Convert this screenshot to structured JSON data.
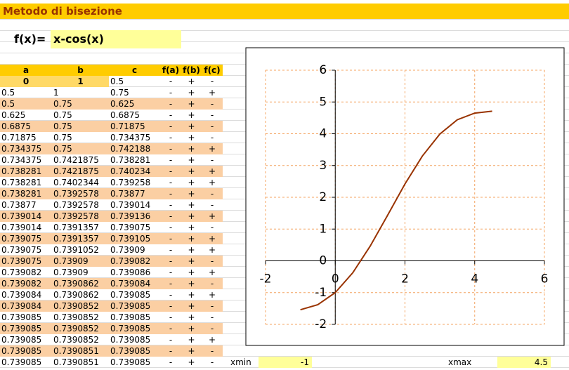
{
  "header": {
    "title": "Metodo di bisezione"
  },
  "formula": {
    "label": "f(x)=",
    "expression": "x-cos(x)"
  },
  "table": {
    "columns": [
      "a",
      "b",
      "c",
      "f(a)",
      "f(b)",
      "f(c)"
    ],
    "initial": [
      "0",
      "1",
      "0.5",
      "-",
      "+",
      "-"
    ],
    "rows": [
      [
        "0.5",
        "1",
        "0.75",
        "-",
        "+",
        "+"
      ],
      [
        "0.5",
        "0.75",
        "0.625",
        "-",
        "+",
        "-"
      ],
      [
        "0.625",
        "0.75",
        "0.6875",
        "-",
        "+",
        "-"
      ],
      [
        "0.6875",
        "0.75",
        "0.71875",
        "-",
        "+",
        "-"
      ],
      [
        "0.71875",
        "0.75",
        "0.734375",
        "-",
        "+",
        "-"
      ],
      [
        "0.734375",
        "0.75",
        "0.742188",
        "-",
        "+",
        "+"
      ],
      [
        "0.734375",
        "0.7421875",
        "0.738281",
        "-",
        "+",
        "-"
      ],
      [
        "0.738281",
        "0.7421875",
        "0.740234",
        "-",
        "+",
        "+"
      ],
      [
        "0.738281",
        "0.7402344",
        "0.739258",
        "-",
        "+",
        "+"
      ],
      [
        "0.738281",
        "0.7392578",
        "0.73877",
        "-",
        "+",
        "-"
      ],
      [
        "0.73877",
        "0.7392578",
        "0.739014",
        "-",
        "+",
        "-"
      ],
      [
        "0.739014",
        "0.7392578",
        "0.739136",
        "-",
        "+",
        "+"
      ],
      [
        "0.739014",
        "0.7391357",
        "0.739075",
        "-",
        "+",
        "-"
      ],
      [
        "0.739075",
        "0.7391357",
        "0.739105",
        "-",
        "+",
        "+"
      ],
      [
        "0.739075",
        "0.7391052",
        "0.73909",
        "-",
        "+",
        "+"
      ],
      [
        "0.739075",
        "0.73909",
        "0.739082",
        "-",
        "+",
        "-"
      ],
      [
        "0.739082",
        "0.73909",
        "0.739086",
        "-",
        "+",
        "+"
      ],
      [
        "0.739082",
        "0.7390862",
        "0.739084",
        "-",
        "+",
        "-"
      ],
      [
        "0.739084",
        "0.7390862",
        "0.739085",
        "-",
        "+",
        "+"
      ],
      [
        "0.739084",
        "0.7390852",
        "0.739085",
        "-",
        "+",
        "-"
      ],
      [
        "0.739085",
        "0.7390852",
        "0.739085",
        "-",
        "+",
        "-"
      ],
      [
        "0.739085",
        "0.7390852",
        "0.739085",
        "-",
        "+",
        "-"
      ],
      [
        "0.739085",
        "0.7390852",
        "0.739085",
        "-",
        "+",
        "+"
      ],
      [
        "0.739085",
        "0.7390851",
        "0.739085",
        "-",
        "+",
        "-"
      ],
      [
        "0.739085",
        "0.7390851",
        "0.739085",
        "-",
        "+",
        "-"
      ]
    ]
  },
  "range": {
    "xmin_label": "xmin",
    "xmin": -1,
    "xmax_label": "xmax",
    "xmax": 4.5
  },
  "chart_data": {
    "type": "line",
    "color": "#993300",
    "x": [
      -1,
      -0.5,
      0,
      0.5,
      1,
      1.5,
      2,
      2.5,
      3,
      3.5,
      4,
      4.5
    ],
    "values": [
      -1.54,
      -1.38,
      -1,
      -0.38,
      0.46,
      1.43,
      2.42,
      3.3,
      3.99,
      4.44,
      4.65,
      4.71
    ],
    "xlim": [
      -2,
      6
    ],
    "ylim": [
      -2,
      6
    ],
    "xticks": [
      -2,
      0,
      2,
      4,
      6
    ],
    "yticks": [
      -2,
      -1,
      0,
      1,
      2,
      3,
      4,
      5,
      6
    ],
    "grid": true
  }
}
